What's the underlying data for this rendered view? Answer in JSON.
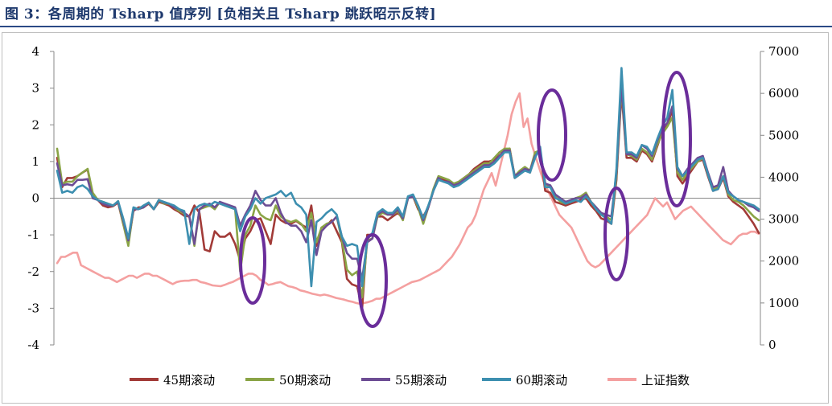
{
  "figure": {
    "title": "图 3：各周期的 Tsharp 值序列 [负相关且 Tsharp 跳跃昭示反转]"
  },
  "chart_data": {
    "type": "line",
    "x_count": 190,
    "y_left": {
      "ylim": [
        -4,
        4
      ],
      "ticks": [
        "4",
        "3",
        "2",
        "1",
        "0",
        "-1",
        "-2",
        "-3",
        "-4"
      ]
    },
    "y_right": {
      "ylim": [
        0,
        7000
      ],
      "ticks": [
        "7000",
        "6000",
        "5000",
        "4000",
        "3000",
        "2000",
        "1000",
        "0"
      ]
    },
    "grid": false,
    "legend_position": "bottom",
    "series": [
      {
        "name": "45期滚动",
        "color": "#a23b38",
        "axis": "left",
        "values": [
          1.1,
          0.3,
          0.55,
          0.55,
          0.6,
          0.7,
          0.78,
          0.1,
          -0.05,
          -0.2,
          -0.25,
          -0.22,
          -0.12,
          -0.7,
          -1.2,
          -0.35,
          -0.25,
          -0.25,
          -0.15,
          -0.3,
          -0.1,
          -0.15,
          -0.2,
          -0.3,
          -0.38,
          -0.48,
          -0.5,
          -0.2,
          -0.4,
          -1.4,
          -1.45,
          -0.9,
          -1.05,
          -1.05,
          -0.95,
          -1.25,
          -1.7,
          -1.1,
          -0.9,
          -0.6,
          -0.55,
          -0.9,
          -1.25,
          -0.45,
          -0.6,
          -0.68,
          -0.7,
          -0.62,
          -0.72,
          -0.8,
          -0.2,
          -1.3,
          -0.8,
          -0.75,
          -0.6,
          -0.9,
          -1.2,
          -2.2,
          -2.35,
          -2.4,
          -3.0,
          -1.0,
          -1.0,
          -0.5,
          -0.5,
          -0.6,
          -0.5,
          -0.4,
          -0.55,
          0.0,
          0.05,
          -0.3,
          -0.5,
          -0.25,
          0.2,
          0.55,
          0.5,
          0.45,
          0.35,
          0.45,
          0.55,
          0.65,
          0.8,
          0.9,
          1.0,
          1.0,
          1.05,
          1.25,
          1.3,
          1.35,
          0.55,
          0.65,
          0.8,
          0.7,
          1.2,
          1.25,
          0.2,
          0.15,
          -0.1,
          -0.15,
          -0.2,
          -0.15,
          -0.1,
          -0.05,
          0.0,
          -0.2,
          -0.35,
          -0.55,
          -0.6,
          -0.7,
          0.5,
          2.9,
          1.1,
          1.1,
          1.0,
          1.3,
          1.2,
          1.0,
          1.4,
          1.8,
          2.0,
          2.4,
          0.6,
          0.4,
          0.6,
          0.8,
          1.0,
          1.05,
          0.6,
          0.2,
          0.25,
          0.55,
          0.05,
          -0.1,
          -0.2,
          -0.3,
          -0.5,
          -0.7,
          -0.95
        ]
      },
      {
        "name": "50期滚动",
        "color": "#8aa446",
        "axis": "left",
        "values": [
          1.35,
          0.4,
          0.45,
          0.45,
          0.6,
          0.7,
          0.8,
          0.15,
          -0.05,
          -0.1,
          -0.15,
          -0.2,
          -0.08,
          -0.7,
          -1.3,
          -0.3,
          -0.3,
          -0.25,
          -0.12,
          -0.3,
          -0.05,
          -0.15,
          -0.15,
          -0.25,
          -0.35,
          -0.42,
          -0.5,
          -1.3,
          -0.3,
          -0.25,
          -0.2,
          -0.3,
          -0.1,
          -0.2,
          -0.25,
          -0.3,
          -2.0,
          -1.0,
          -0.75,
          -0.2,
          -0.45,
          -0.55,
          -0.6,
          -0.2,
          -0.5,
          -0.6,
          -0.65,
          -0.6,
          -0.7,
          -0.9,
          -0.4,
          -1.2,
          -0.8,
          -0.7,
          -0.65,
          -0.5,
          -1.15,
          -1.95,
          -2.1,
          -2.0,
          -2.7,
          -1.15,
          -1.1,
          -0.5,
          -0.4,
          -0.45,
          -0.45,
          -0.35,
          -0.6,
          0.0,
          0.05,
          -0.25,
          -0.7,
          -0.25,
          0.25,
          0.6,
          0.55,
          0.5,
          0.4,
          0.45,
          0.55,
          0.65,
          0.75,
          0.85,
          0.95,
          0.95,
          1.1,
          1.25,
          1.35,
          1.35,
          0.6,
          0.75,
          0.85,
          0.75,
          1.25,
          1.3,
          0.4,
          0.3,
          0.05,
          -0.1,
          -0.15,
          -0.1,
          0.0,
          0.05,
          0.15,
          -0.1,
          -0.25,
          -0.45,
          -0.5,
          -0.6,
          0.6,
          3.0,
          1.2,
          1.15,
          1.05,
          1.35,
          1.25,
          1.05,
          1.45,
          1.75,
          1.95,
          2.2,
          0.7,
          0.5,
          0.7,
          0.85,
          1.0,
          1.1,
          0.65,
          0.25,
          0.3,
          0.6,
          0.1,
          -0.05,
          -0.1,
          -0.2,
          -0.35,
          -0.5,
          -0.6
        ]
      },
      {
        "name": "55期滚动",
        "color": "#6d4d94",
        "axis": "left",
        "values": [
          0.95,
          0.35,
          0.38,
          0.35,
          0.5,
          0.5,
          0.52,
          0.0,
          -0.05,
          -0.15,
          -0.2,
          -0.2,
          -0.1,
          -0.6,
          -1.15,
          -0.3,
          -0.3,
          -0.25,
          -0.12,
          -0.3,
          -0.05,
          -0.12,
          -0.15,
          -0.25,
          -0.3,
          -0.4,
          -0.5,
          -1.25,
          -0.3,
          -0.2,
          -0.15,
          -0.25,
          -0.1,
          -0.15,
          -0.2,
          -0.25,
          -0.75,
          -0.45,
          -0.2,
          0.2,
          -0.05,
          -0.2,
          -0.2,
          0.0,
          -0.4,
          -0.65,
          -0.75,
          -0.75,
          -0.9,
          -1.2,
          -0.6,
          -1.55,
          -0.9,
          -0.75,
          -0.65,
          -0.5,
          -1.05,
          -1.5,
          -1.65,
          -1.65,
          -2.2,
          -1.2,
          -1.1,
          -0.45,
          -0.35,
          -0.45,
          -0.45,
          -0.3,
          -0.55,
          0.0,
          0.05,
          -0.2,
          -0.6,
          -0.25,
          0.2,
          0.55,
          0.45,
          0.45,
          0.35,
          0.4,
          0.5,
          0.6,
          0.7,
          0.8,
          0.9,
          0.9,
          1.0,
          1.15,
          1.3,
          1.3,
          0.6,
          0.7,
          0.8,
          0.75,
          1.15,
          1.3,
          0.4,
          0.35,
          0.1,
          0.0,
          -0.1,
          -0.05,
          0.0,
          0.0,
          0.1,
          -0.1,
          -0.25,
          -0.4,
          -0.45,
          -0.5,
          0.7,
          3.1,
          1.2,
          1.2,
          1.1,
          1.45,
          1.35,
          1.15,
          1.55,
          1.9,
          2.05,
          2.5,
          0.8,
          0.6,
          0.8,
          0.95,
          1.1,
          1.15,
          0.7,
          0.3,
          0.35,
          0.85,
          0.2,
          0.05,
          -0.05,
          -0.1,
          -0.2,
          -0.25,
          -0.35
        ]
      },
      {
        "name": "60期滚动",
        "color": "#3d8fb0",
        "axis": "left",
        "values": [
          0.75,
          0.15,
          0.2,
          0.15,
          0.3,
          0.35,
          0.25,
          0.05,
          -0.05,
          -0.1,
          -0.15,
          -0.2,
          -0.08,
          -0.55,
          -1.1,
          -0.25,
          -0.3,
          -0.2,
          -0.12,
          -0.3,
          -0.05,
          -0.1,
          -0.15,
          -0.2,
          -0.3,
          -0.35,
          -1.25,
          -0.3,
          -0.2,
          -0.15,
          -0.2,
          -0.1,
          -0.15,
          -0.2,
          -0.25,
          -0.3,
          -0.9,
          -0.5,
          -0.3,
          0.0,
          -0.15,
          0.0,
          0.05,
          0.1,
          0.2,
          0.05,
          0.15,
          -0.15,
          -0.25,
          -0.45,
          -2.4,
          -0.65,
          -0.55,
          -0.4,
          -0.3,
          -0.45,
          -1.05,
          -1.3,
          -1.25,
          -1.3,
          -2.4,
          -1.1,
          -0.95,
          -0.4,
          -0.3,
          -0.4,
          -0.4,
          -0.25,
          -0.5,
          0.05,
          0.1,
          -0.2,
          -0.55,
          -0.2,
          0.2,
          0.5,
          0.45,
          0.4,
          0.3,
          0.35,
          0.45,
          0.55,
          0.65,
          0.75,
          0.85,
          0.85,
          0.95,
          1.1,
          1.25,
          1.25,
          0.55,
          0.65,
          0.75,
          0.7,
          1.1,
          1.4,
          0.3,
          0.3,
          0.0,
          -0.05,
          -0.15,
          -0.1,
          -0.05,
          -0.1,
          0.05,
          -0.1,
          -0.3,
          -0.45,
          -0.55,
          -0.7,
          0.8,
          3.55,
          1.25,
          1.25,
          1.15,
          1.45,
          1.4,
          1.2,
          1.6,
          1.95,
          2.2,
          2.95,
          0.85,
          0.6,
          0.75,
          0.9,
          1.05,
          1.1,
          0.65,
          0.2,
          0.25,
          0.6,
          0.15,
          0.05,
          -0.05,
          -0.1,
          -0.15,
          -0.2,
          -0.3
        ]
      },
      {
        "name": "上证指数",
        "color": "#f4a0a0",
        "axis": "right",
        "values": [
          1950,
          2100,
          2100,
          2150,
          2200,
          2200,
          1900,
          1850,
          1800,
          1750,
          1700,
          1650,
          1600,
          1600,
          1550,
          1500,
          1550,
          1600,
          1650,
          1650,
          1600,
          1650,
          1700,
          1700,
          1650,
          1650,
          1600,
          1550,
          1500,
          1450,
          1500,
          1520,
          1530,
          1530,
          1550,
          1550,
          1500,
          1480,
          1450,
          1420,
          1410,
          1400,
          1430,
          1470,
          1500,
          1550,
          1600,
          1650,
          1700,
          1700,
          1650,
          1550,
          1500,
          1430,
          1450,
          1480,
          1500,
          1450,
          1400,
          1380,
          1350,
          1300,
          1280,
          1250,
          1220,
          1200,
          1180,
          1200,
          1180,
          1150,
          1120,
          1100,
          1080,
          1050,
          1030,
          1000,
          980,
          1000,
          1020,
          1050,
          1100,
          1100,
          1150,
          1200,
          1250,
          1300,
          1350,
          1400,
          1450,
          1500,
          1520,
          1550,
          1600,
          1650,
          1700,
          1750,
          1800,
          1900,
          2000,
          2100,
          2250,
          2400,
          2600,
          2800,
          2900,
          3100,
          3400,
          3700,
          3900,
          4100,
          3800,
          4200,
          4600,
          5000,
          5500,
          5800,
          6000,
          5200,
          5400,
          4800,
          4500,
          4200,
          3900,
          3700,
          3500,
          3300,
          3100,
          3000,
          2900,
          2800,
          2600,
          2400,
          2200,
          2000,
          1900,
          1850,
          1900,
          2000,
          2100,
          2200,
          2300,
          2400,
          2500,
          2600,
          2700,
          2800,
          2900,
          3000,
          3100,
          3300,
          3500,
          3400,
          3300,
          3400,
          3200,
          3000,
          3100,
          3200,
          3250,
          3300,
          3200,
          3100,
          3000,
          2900,
          2800,
          2700,
          2600,
          2500,
          2450,
          2400,
          2500,
          2600,
          2650,
          2650,
          2700,
          2700,
          2650
        ]
      }
    ]
  }
}
